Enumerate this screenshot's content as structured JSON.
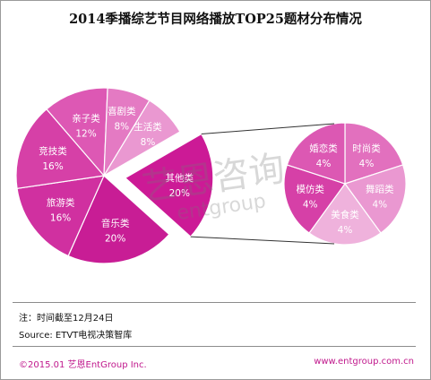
{
  "title": "2014季播综艺节目网络播放TOP25题材分布情况",
  "chart_data": {
    "type": "pie",
    "main_pie": {
      "slices": [
        {
          "label": "其他类",
          "value": 20,
          "display": "20%",
          "color": "#cc1a96",
          "exploded": true
        },
        {
          "label": "音乐类",
          "value": 20,
          "display": "20%",
          "color": "#c81d95"
        },
        {
          "label": "旅游类",
          "value": 16,
          "display": "16%",
          "color": "#d030a0"
        },
        {
          "label": "竞技类",
          "value": 16,
          "display": "16%",
          "color": "#d640a7"
        },
        {
          "label": "亲子类",
          "value": 12,
          "display": "12%",
          "color": "#dd58b4"
        },
        {
          "label": "喜剧类",
          "value": 8,
          "display": "8%",
          "color": "#e47ac3"
        },
        {
          "label": "生活类",
          "value": 8,
          "display": "8%",
          "color": "#ea98d1"
        }
      ]
    },
    "detail_pie": {
      "source_slice": "其他类",
      "slices": [
        {
          "label": "时尚类",
          "value": 4,
          "display": "4%",
          "color": "#e270be"
        },
        {
          "label": "舞蹈类",
          "value": 4,
          "display": "4%",
          "color": "#ea98d1"
        },
        {
          "label": "美食类",
          "value": 4,
          "display": "4%",
          "color": "#efb2dc"
        },
        {
          "label": "模仿类",
          "value": 4,
          "display": "4%",
          "color": "#d640a7"
        },
        {
          "label": "婚恋类",
          "value": 4,
          "display": "4%",
          "color": "#dc58b3"
        }
      ]
    }
  },
  "watermark": {
    "cn": "艺恩咨询",
    "en": "entgroup"
  },
  "notes": {
    "line1": "注：时间截至12月24日",
    "line2": "Source: ETVT电视决策智库"
  },
  "footer": {
    "left": "©2015.01  艺恩EntGroup Inc.",
    "right": "www.entgroup.com.cn"
  }
}
